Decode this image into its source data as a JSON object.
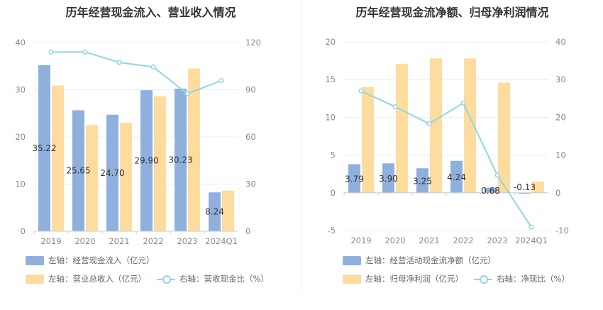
{
  "chart_data": [
    {
      "type": "bar",
      "title": "历年经营现金流入、营业收入情况",
      "categories": [
        "2019",
        "2020",
        "2021",
        "2022",
        "2023",
        "2024Q1"
      ],
      "y_left": {
        "ylim": [
          0,
          40
        ],
        "ticks": [
          "0",
          "10",
          "20",
          "30",
          "40"
        ],
        "tick_values": [
          0,
          10,
          20,
          30,
          40
        ]
      },
      "y_right": {
        "ylim": [
          0,
          120
        ],
        "ticks": [
          "0",
          "30",
          "60",
          "90",
          "120"
        ],
        "tick_values": [
          0,
          30,
          60,
          90,
          120
        ]
      },
      "series": [
        {
          "name": "左轴：经营现金流入（亿元）",
          "kind": "bar",
          "axis": "left",
          "color": "#8fb0dd",
          "values": [
            35.22,
            25.65,
            24.7,
            29.9,
            30.23,
            8.24
          ],
          "labels": [
            "35.22",
            "25.65",
            "24.70",
            "29.90",
            "30.23",
            "8.24"
          ]
        },
        {
          "name": "左轴：营业总收入（亿元）",
          "kind": "bar",
          "axis": "left",
          "color": "#fedb9e",
          "values": [
            30.9,
            22.5,
            23.0,
            28.6,
            34.5,
            8.6
          ]
        },
        {
          "name": "右轴：营收现金比（%）",
          "kind": "line",
          "axis": "right",
          "color": "#8fd7de",
          "values": [
            113.9,
            114.0,
            107.4,
            104.5,
            87.5,
            95.8
          ]
        }
      ],
      "legend": {
        "row1": [
          "左轴：经营现金流入（亿元）"
        ],
        "row2": [
          "左轴：营业总收入（亿元）",
          "右轴：营收现金比（%）"
        ]
      }
    },
    {
      "type": "bar",
      "title": "历年经营现金流净额、归母净利润情况",
      "categories": [
        "2019",
        "2020",
        "2021",
        "2022",
        "2023",
        "2024Q1"
      ],
      "y_left": {
        "ylim": [
          -5,
          20
        ],
        "ticks": [
          "-5",
          "0",
          "5",
          "10",
          "15",
          "20"
        ],
        "tick_values": [
          -5,
          0,
          5,
          10,
          15,
          20
        ]
      },
      "y_right": {
        "ylim": [
          -10,
          40
        ],
        "ticks": [
          "-10",
          "0",
          "10",
          "20",
          "30",
          "40"
        ],
        "tick_values": [
          -10,
          0,
          10,
          20,
          30,
          40
        ]
      },
      "series": [
        {
          "name": "左轴：经营活动现金流净额（亿元）",
          "kind": "bar",
          "axis": "left",
          "color": "#8fb0dd",
          "values": [
            3.79,
            3.9,
            3.25,
            4.24,
            0.68,
            -0.13
          ],
          "labels": [
            "3.79",
            "3.90",
            "3.25",
            "4.24",
            "0.68",
            "-0.13"
          ]
        },
        {
          "name": "左轴：归母净利润（亿元）",
          "kind": "bar",
          "axis": "left",
          "color": "#fedb9e",
          "values": [
            14.0,
            17.1,
            17.8,
            17.8,
            14.6,
            1.5
          ]
        },
        {
          "name": "右轴：净现比（%）",
          "kind": "line",
          "axis": "right",
          "color": "#8fd7de",
          "values": [
            27.0,
            22.8,
            18.3,
            23.8,
            4.7,
            -9.1
          ]
        }
      ],
      "legend": {
        "row1": [
          "左轴：经营活动现金流净额（亿元）"
        ],
        "row2": [
          "左轴：归母净利润（亿元）",
          "右轴：净现比（%）"
        ]
      }
    }
  ]
}
